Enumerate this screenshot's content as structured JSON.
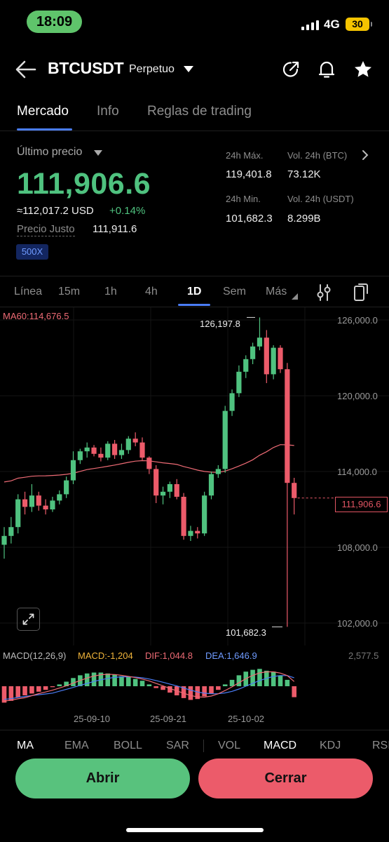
{
  "status_bar": {
    "time": "18:09",
    "network": "4G",
    "battery": "30"
  },
  "header": {
    "symbol": "BTCUSDT",
    "contract_type": "Perpetuo",
    "icons": [
      "arrow-left-icon",
      "share-icon",
      "bell-icon",
      "star-icon"
    ]
  },
  "tabs": [
    {
      "label": "Mercado",
      "active": true
    },
    {
      "label": "Info"
    },
    {
      "label": "Reglas de trading"
    }
  ],
  "price": {
    "label": "Último precio",
    "last": "111,906.6",
    "approx": "≈112,017.2  USD",
    "change": "+0.14%",
    "fair_label": "Precio Justo",
    "fair_value": "111,911.6",
    "leverage": "500X"
  },
  "stats": {
    "high_label": "24h Máx.",
    "high": "119,401.8",
    "low_label": "24h Min.",
    "low": "101,682.3",
    "vol_btc_label": "Vol. 24h (BTC)",
    "vol_btc": "73.12K",
    "vol_usdt_label": "Vol. 24h (USDT)",
    "vol_usdt": "8.299B"
  },
  "intervals": [
    {
      "label": "Línea"
    },
    {
      "label": "15m"
    },
    {
      "label": "1h"
    },
    {
      "label": "4h"
    },
    {
      "label": "1D",
      "active": true
    },
    {
      "label": "Sem"
    },
    {
      "label": "Más"
    }
  ],
  "chart": {
    "ma_label": "MA60:114,676.5",
    "y_ticks": [
      "126,000.0",
      "120,000.0",
      "114,000.0",
      "108,000.0",
      "102,000.0"
    ],
    "current_price_tag": "111,906.6",
    "high_marker": "126,197.8",
    "low_marker": "101,682.3",
    "macd_params": "MACD(12,26,9)",
    "macd_value": "MACD:-1,204",
    "dif_value": "DIF:1,044.8",
    "dea_value": "DEA:1,646.9",
    "macd_scale": "2,577.5",
    "x_ticks": [
      "25-09-10",
      "25-09-21",
      "25-10-02"
    ],
    "colors": {
      "up": "#4fc27f",
      "down": "#ec5b6a",
      "ma60": "#ee6b75",
      "dif": "#ee6b75",
      "dea": "#4a7df5"
    },
    "candles": [
      {
        "o": 108.2,
        "h": 109.6,
        "l": 107.1,
        "c": 108.9
      },
      {
        "o": 108.9,
        "h": 110.4,
        "l": 108.3,
        "c": 109.6
      },
      {
        "o": 109.6,
        "h": 112.2,
        "l": 109.1,
        "c": 111.8
      },
      {
        "o": 111.8,
        "h": 112.4,
        "l": 110.6,
        "c": 111.2
      },
      {
        "o": 111.2,
        "h": 113.0,
        "l": 110.8,
        "c": 112.1
      },
      {
        "o": 112.1,
        "h": 112.4,
        "l": 110.9,
        "c": 111.3
      },
      {
        "o": 111.3,
        "h": 111.8,
        "l": 110.6,
        "c": 111.0
      },
      {
        "o": 111.0,
        "h": 112.0,
        "l": 110.8,
        "c": 111.7
      },
      {
        "o": 111.7,
        "h": 112.5,
        "l": 111.4,
        "c": 112.2
      },
      {
        "o": 112.2,
        "h": 113.6,
        "l": 111.9,
        "c": 113.3
      },
      {
        "o": 113.3,
        "h": 115.6,
        "l": 113.0,
        "c": 114.9
      },
      {
        "o": 114.9,
        "h": 115.8,
        "l": 114.6,
        "c": 115.6
      },
      {
        "o": 115.6,
        "h": 116.3,
        "l": 115.1,
        "c": 115.9
      },
      {
        "o": 115.9,
        "h": 116.1,
        "l": 115.2,
        "c": 115.4
      },
      {
        "o": 115.4,
        "h": 115.9,
        "l": 114.8,
        "c": 115.1
      },
      {
        "o": 115.1,
        "h": 116.4,
        "l": 114.9,
        "c": 116.2
      },
      {
        "o": 116.2,
        "h": 116.5,
        "l": 115.0,
        "c": 115.3
      },
      {
        "o": 115.3,
        "h": 116.2,
        "l": 115.0,
        "c": 115.7
      },
      {
        "o": 115.7,
        "h": 116.8,
        "l": 115.4,
        "c": 116.6
      },
      {
        "o": 116.6,
        "h": 117.1,
        "l": 116.0,
        "c": 116.3
      },
      {
        "o": 116.3,
        "h": 116.7,
        "l": 114.9,
        "c": 115.1
      },
      {
        "o": 115.1,
        "h": 115.2,
        "l": 113.8,
        "c": 114.2
      },
      {
        "o": 114.2,
        "h": 114.5,
        "l": 111.5,
        "c": 112.1
      },
      {
        "o": 112.1,
        "h": 112.8,
        "l": 111.4,
        "c": 112.4
      },
      {
        "o": 112.4,
        "h": 113.2,
        "l": 111.9,
        "c": 113.0
      },
      {
        "o": 113.0,
        "h": 113.4,
        "l": 111.8,
        "c": 112.0
      },
      {
        "o": 112.0,
        "h": 112.3,
        "l": 108.6,
        "c": 108.9
      },
      {
        "o": 108.9,
        "h": 109.7,
        "l": 108.5,
        "c": 109.3
      },
      {
        "o": 109.3,
        "h": 109.6,
        "l": 108.7,
        "c": 109.1
      },
      {
        "o": 109.1,
        "h": 112.4,
        "l": 108.9,
        "c": 112.1
      },
      {
        "o": 112.1,
        "h": 114.0,
        "l": 111.8,
        "c": 113.8
      },
      {
        "o": 113.8,
        "h": 114.5,
        "l": 113.5,
        "c": 114.2
      },
      {
        "o": 114.2,
        "h": 119.2,
        "l": 113.9,
        "c": 118.8
      },
      {
        "o": 118.8,
        "h": 120.5,
        "l": 118.4,
        "c": 120.2
      },
      {
        "o": 120.2,
        "h": 122.4,
        "l": 119.9,
        "c": 121.9
      },
      {
        "o": 121.9,
        "h": 123.2,
        "l": 121.4,
        "c": 122.9
      },
      {
        "o": 122.9,
        "h": 124.2,
        "l": 122.5,
        "c": 123.9
      },
      {
        "o": 123.9,
        "h": 126.2,
        "l": 123.6,
        "c": 124.6
      },
      {
        "o": 124.6,
        "h": 125.2,
        "l": 121.0,
        "c": 121.7
      },
      {
        "o": 121.7,
        "h": 124.0,
        "l": 121.3,
        "c": 123.8
      },
      {
        "o": 123.8,
        "h": 124.0,
        "l": 121.8,
        "c": 122.1
      },
      {
        "o": 122.1,
        "h": 122.6,
        "l": 101.7,
        "c": 113.1
      },
      {
        "o": 113.1,
        "h": 113.5,
        "l": 110.6,
        "c": 111.9
      }
    ],
    "macd_hist": [
      -0.9,
      -0.8,
      -0.6,
      -0.5,
      -0.4,
      -0.3,
      -0.2,
      -0.05,
      0.1,
      0.25,
      0.45,
      0.6,
      0.7,
      0.75,
      0.75,
      0.7,
      0.65,
      0.55,
      0.5,
      0.4,
      0.3,
      0.1,
      -0.1,
      -0.2,
      -0.35,
      -0.5,
      -0.65,
      -0.75,
      -0.7,
      -0.55,
      -0.4,
      -0.2,
      0.1,
      0.35,
      0.6,
      0.8,
      0.9,
      0.95,
      0.85,
      0.8,
      0.6,
      0.35,
      -0.6
    ]
  },
  "indicators": [
    {
      "label": "MA",
      "active": true
    },
    {
      "label": "EMA"
    },
    {
      "label": "BOLL"
    },
    {
      "label": "SAR"
    },
    {
      "label": "VOL"
    },
    {
      "label": "MACD",
      "active": true
    },
    {
      "label": "KDJ"
    },
    {
      "label": "RSI"
    }
  ],
  "actions": {
    "open": "Abrir",
    "close": "Cerrar"
  }
}
